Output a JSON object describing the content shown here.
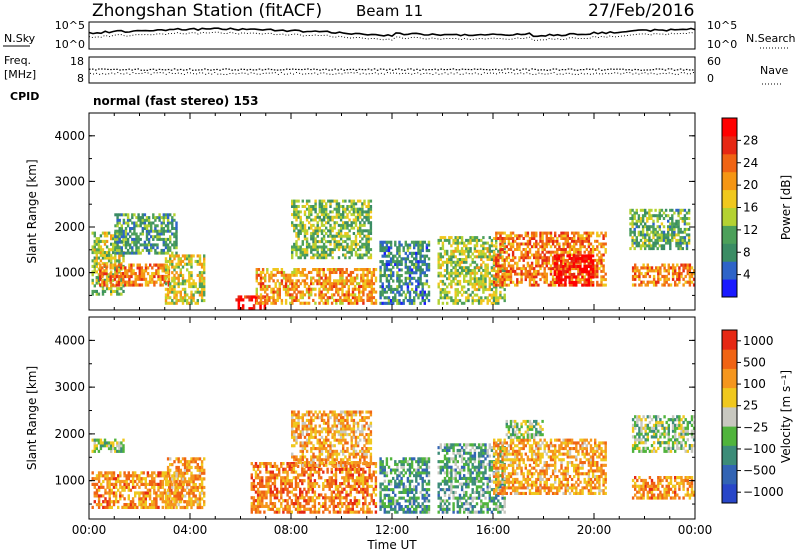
{
  "header": {
    "title": "Zhongshan Station (fitACF)",
    "beam": "Beam 11",
    "date": "27/Feb/2016"
  },
  "noise_panel": {
    "left_label": "N.Sky",
    "left_ticks": [
      "10^5",
      "10^0"
    ],
    "right_ticks": [
      "10^5",
      "10^0"
    ],
    "right_label": "N.Search"
  },
  "freq_panel": {
    "left_label_line1": "Freq.",
    "left_label_line2": "[MHz]",
    "left_ticks": [
      "18",
      "8"
    ],
    "right_ticks": [
      "60",
      "0"
    ],
    "right_label": "Nave"
  },
  "cpid": {
    "label": "CPID",
    "text": "normal (fast stereo) 153"
  },
  "chart_data": [
    {
      "type": "heatmap",
      "title": "",
      "xlabel": "Time UT",
      "ylabel": "Slant Range [km]",
      "xlim": [
        0,
        24
      ],
      "ylim": [
        180,
        4500
      ],
      "x_ticks": [
        "00:00",
        "04:00",
        "08:00",
        "12:00",
        "16:00",
        "20:00",
        "00:00"
      ],
      "y_ticks": [
        "1000",
        "2000",
        "3000",
        "4000"
      ],
      "colorbar": {
        "label": "Power [dB]",
        "range": [
          0,
          32
        ],
        "ticks": [
          "4",
          "8",
          "12",
          "16",
          "20",
          "24",
          "28"
        ],
        "colors": [
          "#1a1aff",
          "#2e64c8",
          "#3a8c64",
          "#4ca05a",
          "#b4d232",
          "#f0c81e",
          "#f59614",
          "#f06414",
          "#e62814",
          "#ff0000"
        ]
      },
      "echo_regions": [
        {
          "t0": 0.1,
          "t1": 1.4,
          "r0": 500,
          "r1": 1900,
          "level": 0.45
        },
        {
          "t0": 0.4,
          "t1": 3.2,
          "r0": 700,
          "r1": 1200,
          "level": 0.7
        },
        {
          "t0": 1.0,
          "t1": 3.5,
          "r0": 1400,
          "r1": 2300,
          "level": 0.3
        },
        {
          "t0": 3.0,
          "t1": 4.6,
          "r0": 300,
          "r1": 1400,
          "level": 0.5
        },
        {
          "t0": 5.8,
          "t1": 7.0,
          "r0": 180,
          "r1": 500,
          "level": 0.95
        },
        {
          "t0": 6.6,
          "t1": 11.4,
          "r0": 300,
          "r1": 1100,
          "level": 0.65
        },
        {
          "t0": 8.0,
          "t1": 11.2,
          "r0": 1300,
          "r1": 2600,
          "level": 0.4
        },
        {
          "t0": 11.5,
          "t1": 13.5,
          "r0": 300,
          "r1": 1700,
          "level": 0.25
        },
        {
          "t0": 13.8,
          "t1": 16.5,
          "r0": 300,
          "r1": 1800,
          "level": 0.45
        },
        {
          "t0": 16.0,
          "t1": 20.5,
          "r0": 700,
          "r1": 1900,
          "level": 0.7
        },
        {
          "t0": 18.4,
          "t1": 20.0,
          "r0": 700,
          "r1": 1400,
          "level": 0.95
        },
        {
          "t0": 21.5,
          "t1": 24.0,
          "r0": 700,
          "r1": 1200,
          "level": 0.7
        },
        {
          "t0": 21.4,
          "t1": 23.8,
          "r0": 1500,
          "r1": 2400,
          "level": 0.35
        }
      ]
    },
    {
      "type": "heatmap",
      "title": "",
      "xlabel": "Time UT",
      "ylabel": "Slant Range [km]",
      "xlim": [
        0,
        24
      ],
      "ylim": [
        180,
        4500
      ],
      "x_ticks": [
        "00:00",
        "04:00",
        "08:00",
        "12:00",
        "16:00",
        "20:00",
        "00:00"
      ],
      "y_ticks": [
        "1000",
        "2000",
        "3000",
        "4000"
      ],
      "colorbar": {
        "label": "Velocity [m s⁻¹]",
        "range": [
          -1200,
          1200
        ],
        "ticks": [
          "1000",
          "500",
          "100",
          "25",
          "−25",
          "−100",
          "−500",
          "−1000"
        ],
        "colors": [
          "#2846c8",
          "#3264b4",
          "#3c8c78",
          "#50b43c",
          "#c8c8c0",
          "#f0c81e",
          "#f5961e",
          "#f06414",
          "#e62814"
        ]
      },
      "echo_regions": [
        {
          "t0": 0.1,
          "t1": 1.4,
          "r0": 1600,
          "r1": 1900,
          "level": 0.45
        },
        {
          "t0": 0.1,
          "t1": 3.8,
          "r0": 400,
          "r1": 1200,
          "level": 0.75
        },
        {
          "t0": 3.0,
          "t1": 4.6,
          "r0": 400,
          "r1": 1500,
          "level": 0.7
        },
        {
          "t0": 6.4,
          "t1": 11.4,
          "r0": 300,
          "r1": 1400,
          "level": 0.78
        },
        {
          "t0": 8.0,
          "t1": 11.2,
          "r0": 1300,
          "r1": 2500,
          "level": 0.68
        },
        {
          "t0": 11.5,
          "t1": 13.5,
          "r0": 300,
          "r1": 1500,
          "level": 0.3
        },
        {
          "t0": 13.8,
          "t1": 16.5,
          "r0": 300,
          "r1": 1800,
          "level": 0.35
        },
        {
          "t0": 16.0,
          "t1": 20.5,
          "r0": 700,
          "r1": 1900,
          "level": 0.7
        },
        {
          "t0": 16.5,
          "t1": 18.0,
          "r0": 1900,
          "r1": 2300,
          "level": 0.45
        },
        {
          "t0": 21.5,
          "t1": 24.0,
          "r0": 600,
          "r1": 1100,
          "level": 0.74
        },
        {
          "t0": 21.5,
          "t1": 24.0,
          "r0": 1600,
          "r1": 2400,
          "level": 0.45
        }
      ]
    }
  ]
}
